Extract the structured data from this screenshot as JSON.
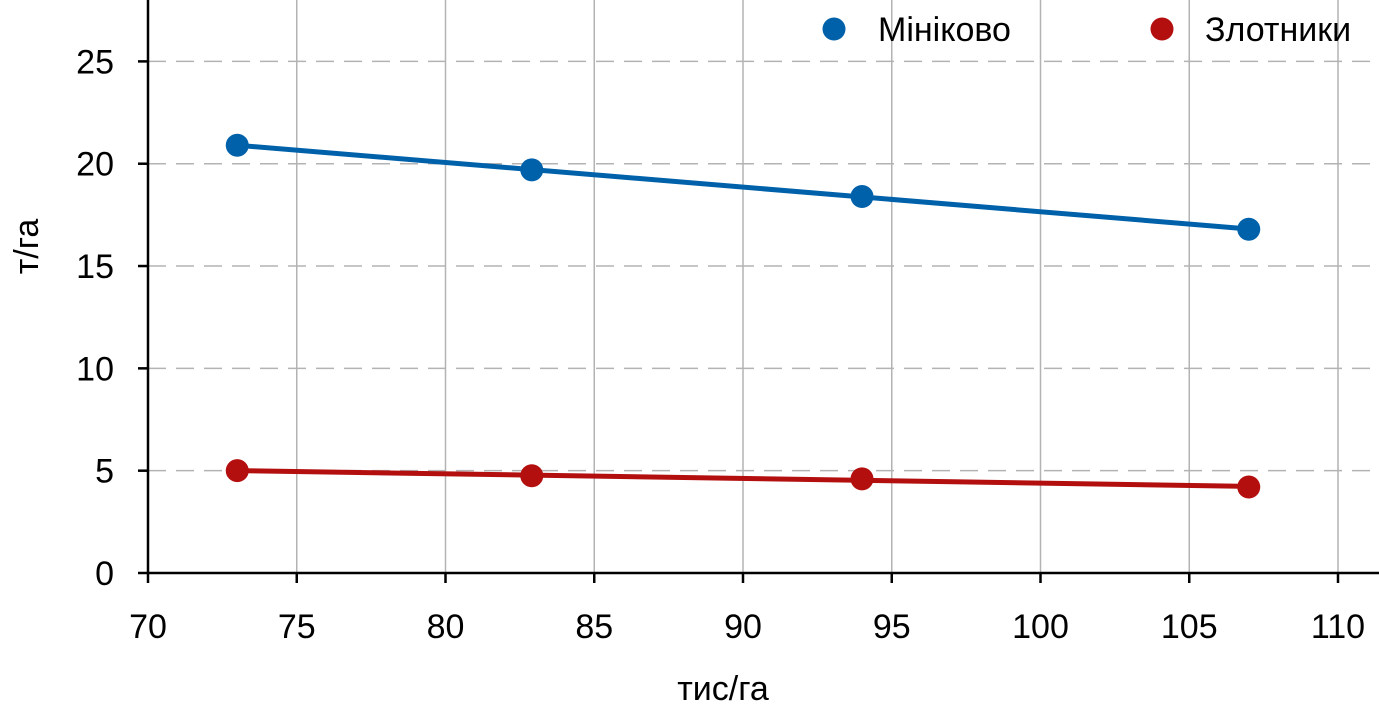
{
  "chart_data": {
    "type": "line",
    "xlabel": "тис/га",
    "ylabel": "т/га",
    "xlim": [
      70,
      110
    ],
    "ylim": [
      0,
      28
    ],
    "xticks": [
      70,
      75,
      80,
      85,
      90,
      95,
      100,
      105,
      110
    ],
    "yticks": [
      0,
      5,
      10,
      15,
      20,
      25
    ],
    "grid": {
      "x": "solid",
      "y": "dashed"
    },
    "legend": "top-right",
    "series": [
      {
        "name": "Мініково",
        "color": "#0061ab",
        "x": [
          73,
          82.9,
          94,
          107
        ],
        "y": [
          20.9,
          19.7,
          18.4,
          16.8
        ]
      },
      {
        "name": "Злотники",
        "color": "#b30f0f",
        "x": [
          73,
          82.9,
          94,
          107
        ],
        "y": [
          5.0,
          4.75,
          4.6,
          4.2
        ]
      }
    ]
  }
}
